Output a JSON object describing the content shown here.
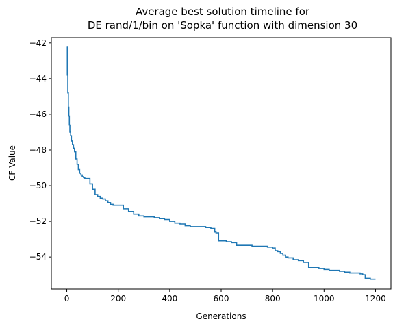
{
  "chart_data": {
    "type": "line",
    "title_line1": "Average best solution timeline for",
    "title_line2": "DE rand/1/bin on 'Sopka' function with dimension 30",
    "xlabel": "Generations",
    "ylabel": "CF Value",
    "xlim": [
      -60,
      1260
    ],
    "ylim": [
      -55.8,
      -41.7
    ],
    "x_ticks": [
      0,
      200,
      400,
      600,
      800,
      1000,
      1200
    ],
    "x_tick_labels": [
      "0",
      "200",
      "400",
      "600",
      "800",
      "1000",
      "1200"
    ],
    "y_ticks": [
      -54,
      -52,
      -50,
      -48,
      -46,
      -44,
      -42
    ],
    "y_tick_labels": [
      "−54",
      "−52",
      "−50",
      "−48",
      "−46",
      "−44",
      "−42"
    ],
    "grid": false,
    "series": [
      {
        "color": "#1f77b4",
        "x": [
          0,
          2,
          4,
          6,
          8,
          10,
          12,
          15,
          18,
          22,
          26,
          30,
          35,
          40,
          45,
          50,
          55,
          60,
          65,
          70,
          75,
          80,
          90,
          100,
          110,
          120,
          130,
          140,
          150,
          160,
          170,
          180,
          190,
          200,
          220,
          240,
          260,
          280,
          300,
          320,
          340,
          360,
          380,
          400,
          420,
          440,
          460,
          480,
          500,
          520,
          540,
          560,
          575,
          580,
          590,
          600,
          620,
          640,
          660,
          680,
          700,
          720,
          740,
          760,
          780,
          800,
          810,
          820,
          830,
          840,
          850,
          860,
          880,
          900,
          920,
          940,
          960,
          980,
          1000,
          1020,
          1040,
          1060,
          1080,
          1100,
          1120,
          1140,
          1150,
          1160,
          1180,
          1200
        ],
        "y": [
          -42.2,
          -43.8,
          -44.8,
          -45.6,
          -46.1,
          -46.6,
          -47.0,
          -47.2,
          -47.5,
          -47.7,
          -47.9,
          -48.1,
          -48.5,
          -48.8,
          -49.1,
          -49.3,
          -49.4,
          -49.5,
          -49.55,
          -49.6,
          -49.6,
          -49.6,
          -49.9,
          -50.2,
          -50.5,
          -50.6,
          -50.7,
          -50.75,
          -50.85,
          -50.95,
          -51.05,
          -51.1,
          -51.1,
          -51.1,
          -51.3,
          -51.45,
          -51.6,
          -51.7,
          -51.75,
          -51.75,
          -51.8,
          -51.85,
          -51.9,
          -52.0,
          -52.1,
          -52.15,
          -52.25,
          -52.3,
          -52.3,
          -52.3,
          -52.35,
          -52.4,
          -52.6,
          -52.65,
          -53.1,
          -53.1,
          -53.15,
          -53.2,
          -53.35,
          -53.35,
          -53.35,
          -53.4,
          -53.4,
          -53.4,
          -53.45,
          -53.5,
          -53.65,
          -53.7,
          -53.8,
          -53.9,
          -54.0,
          -54.05,
          -54.15,
          -54.2,
          -54.3,
          -54.6,
          -54.6,
          -54.65,
          -54.7,
          -54.75,
          -54.75,
          -54.8,
          -54.85,
          -54.9,
          -54.9,
          -54.95,
          -55.0,
          -55.2,
          -55.25,
          -55.25
        ]
      }
    ]
  }
}
